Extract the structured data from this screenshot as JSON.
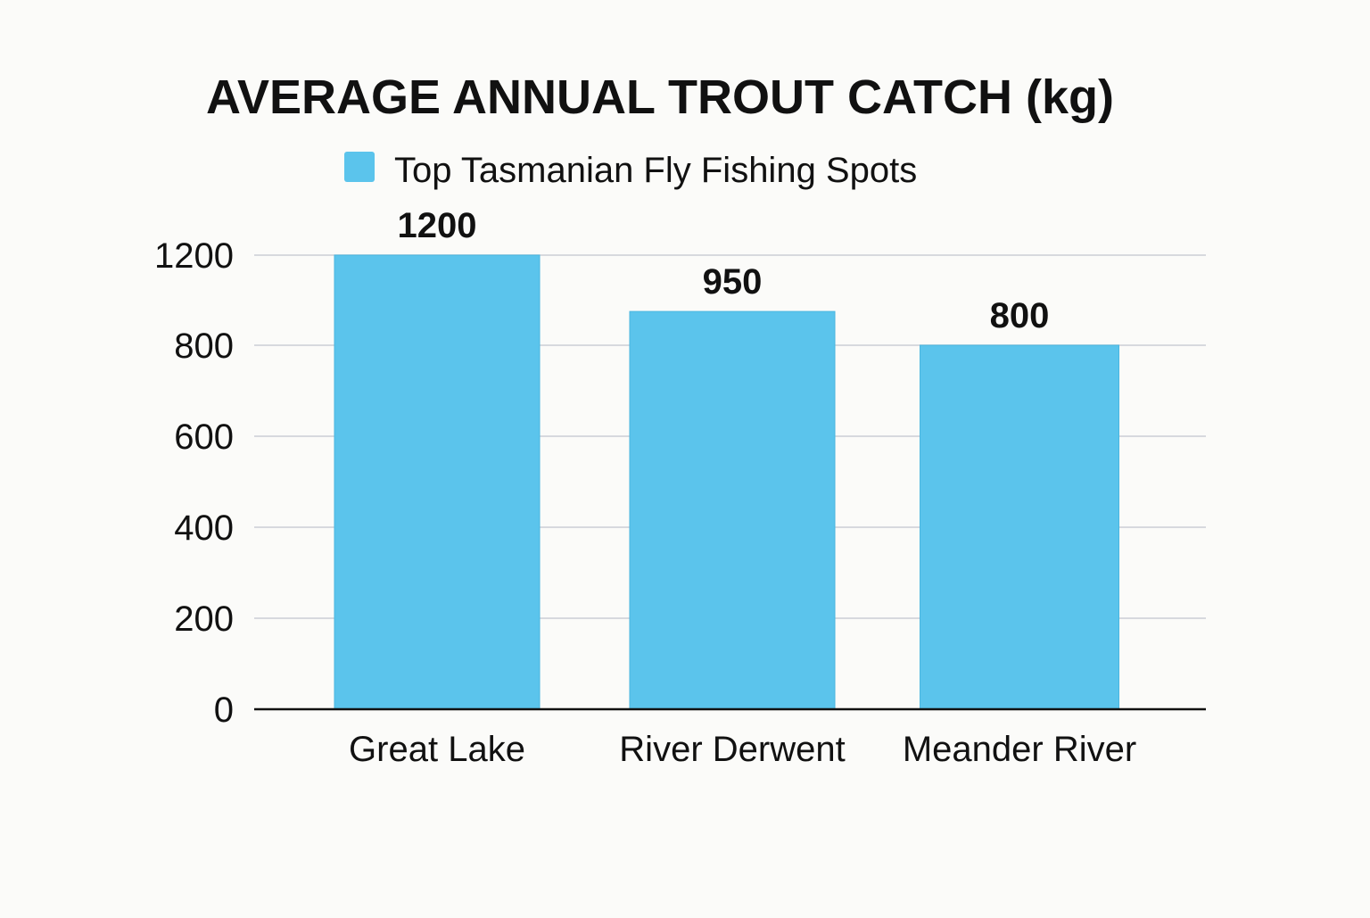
{
  "chart_data": {
    "type": "bar",
    "title": "AVERAGE ANNUAL TROUT CATCH (kg)",
    "legend": {
      "placement": "top",
      "label": "Top Tasmanian Fly Fishing Spots"
    },
    "categories": [
      "Great Lake",
      "River Derwent",
      "Meander River"
    ],
    "series": [
      {
        "name": "Top Tasmanian Fly Fishing Spots",
        "values": [
          1200,
          950,
          800
        ],
        "data_labels": [
          "1200",
          "950",
          "800"
        ],
        "color": "#5bc4ec"
      }
    ],
    "y_ticks": [
      {
        "value": 0,
        "label": "0"
      },
      {
        "value": 200,
        "label": "200"
      },
      {
        "value": 400,
        "label": "400"
      },
      {
        "value": 600,
        "label": "600"
      },
      {
        "value": 800,
        "label": "800"
      },
      {
        "value": 1200,
        "label": "1200"
      }
    ],
    "grid": true,
    "colors": {
      "bar": "#5bc4ec",
      "bar_edge": "#4ab6e0",
      "grid": "#d7d9de",
      "axis": "#111111",
      "text": "#111111",
      "background": "#fbfbf9"
    }
  }
}
